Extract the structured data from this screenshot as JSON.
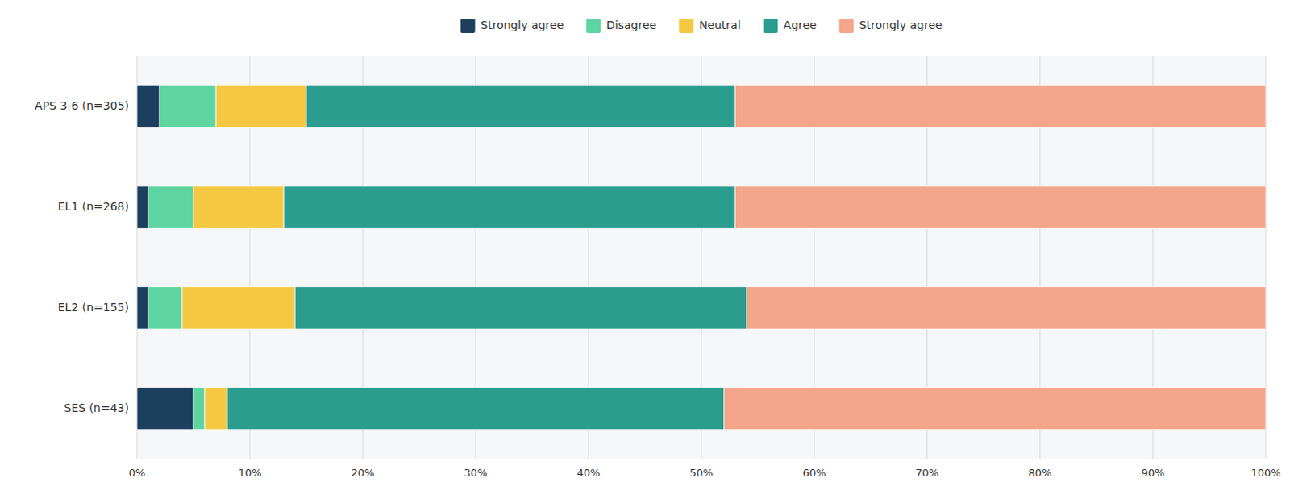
{
  "chart_data": {
    "type": "bar",
    "orientation": "horizontal",
    "stacked": true,
    "categories": [
      "APS 3-6 (n=305)",
      "EL1 (n=268)",
      "EL2 (n=155)",
      "SES (n=43)"
    ],
    "series": [
      {
        "name": "Strongly agree",
        "color": "#1d3f5e",
        "values": [
          2,
          1,
          1,
          5
        ]
      },
      {
        "name": "Disagree",
        "color": "#5ed4a0",
        "values": [
          5,
          4,
          3,
          1
        ]
      },
      {
        "name": "Neutral",
        "color": "#f5c842",
        "values": [
          8,
          8,
          10,
          2
        ]
      },
      {
        "name": "Agree",
        "color": "#2a9d8f",
        "values": [
          38,
          40,
          40,
          44
        ]
      },
      {
        "name": "Strongly agree",
        "color": "#f4a58a",
        "values": [
          47,
          47,
          46,
          48
        ]
      }
    ],
    "xlim": [
      0,
      100
    ],
    "xticks": [
      {
        "value": 0,
        "label": "0%"
      },
      {
        "value": 10,
        "label": "10%"
      },
      {
        "value": 20,
        "label": "20%"
      },
      {
        "value": 30,
        "label": "30%"
      },
      {
        "value": 40,
        "label": "40%"
      },
      {
        "value": 50,
        "label": "50%"
      },
      {
        "value": 60,
        "label": "60%"
      },
      {
        "value": 70,
        "label": "70%"
      },
      {
        "value": 80,
        "label": "80%"
      },
      {
        "value": 90,
        "label": "90%"
      },
      {
        "value": 100,
        "label": "100%"
      }
    ],
    "grid": true,
    "legend": "top"
  }
}
